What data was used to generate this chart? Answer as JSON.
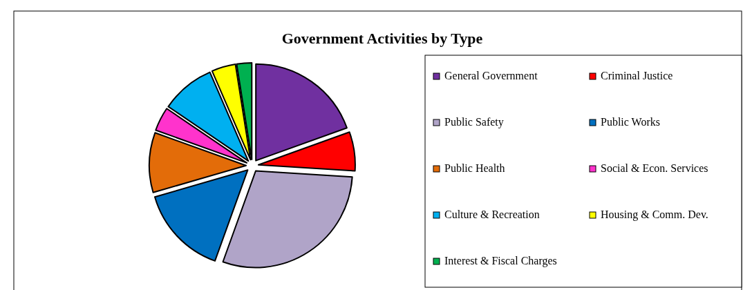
{
  "chart_data": {
    "type": "pie",
    "title": "Government Activities by Type",
    "categories": [
      "General Government",
      "Criminal Justice",
      "Public Safety",
      "Public Works",
      "Public Health",
      "Social & Econ. Services",
      "Culture & Recreation",
      "Housing & Comm. Dev.",
      "Interest & Fiscal Charges"
    ],
    "values": [
      19.5,
      6.5,
      29.5,
      15,
      10,
      4,
      9,
      4,
      2.5
    ],
    "colors": [
      "#7030a0",
      "#ff0000",
      "#b0a4c8",
      "#0070c0",
      "#e36c09",
      "#ff33cc",
      "#00b0f0",
      "#ffff00",
      "#00b050"
    ],
    "legend": "right"
  }
}
